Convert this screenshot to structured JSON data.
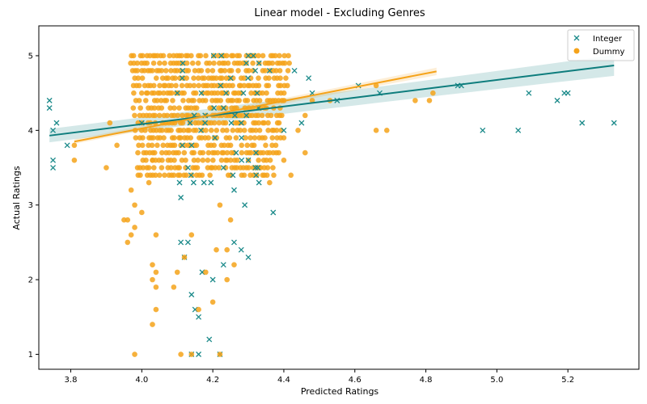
{
  "chart_data": {
    "type": "scatter",
    "title": "Linear model - Excluding Genres",
    "xlabel": "Predicted Ratings",
    "ylabel": "Actual Ratings",
    "xlim": [
      3.71,
      5.4
    ],
    "ylim": [
      0.8,
      5.4
    ],
    "xticks": [
      3.8,
      4.0,
      4.2,
      4.4,
      4.6,
      4.8,
      5.0,
      5.2
    ],
    "yticks": [
      1,
      2,
      3,
      4,
      5
    ],
    "grid": false,
    "legend_position": "top-right",
    "series": [
      {
        "name": "Integer",
        "marker": "x",
        "color": "#1b8a8a",
        "points": [
          [
            3.74,
            4.4
          ],
          [
            3.74,
            4.3
          ],
          [
            3.75,
            4.0
          ],
          [
            3.76,
            4.1
          ],
          [
            3.75,
            3.6
          ],
          [
            3.75,
            3.5
          ],
          [
            3.79,
            3.8
          ],
          [
            4.0,
            4.1
          ],
          [
            4.1,
            4.5
          ],
          [
            4.11,
            3.1
          ],
          [
            4.11,
            2.5
          ],
          [
            4.12,
            2.3
          ],
          [
            4.13,
            2.5
          ],
          [
            4.14,
            1.8
          ],
          [
            4.15,
            1.6
          ],
          [
            4.16,
            1.5
          ],
          [
            4.14,
            1.0
          ],
          [
            4.16,
            1.0
          ],
          [
            4.19,
            1.2
          ],
          [
            4.22,
            1.0
          ],
          [
            4.17,
            2.1
          ],
          [
            4.2,
            2.0
          ],
          [
            4.23,
            2.2
          ],
          [
            4.26,
            2.5
          ],
          [
            4.28,
            2.4
          ],
          [
            4.3,
            2.3
          ],
          [
            4.26,
            3.2
          ],
          [
            4.29,
            3.0
          ],
          [
            4.33,
            3.3
          ],
          [
            4.37,
            2.9
          ],
          [
            4.3,
            3.6
          ],
          [
            4.32,
            3.5
          ],
          [
            4.3,
            5.0
          ],
          [
            4.33,
            4.9
          ],
          [
            4.36,
            4.8
          ],
          [
            4.4,
            4.0
          ],
          [
            4.43,
            4.8
          ],
          [
            4.45,
            4.1
          ],
          [
            4.47,
            4.7
          ],
          [
            4.48,
            4.5
          ],
          [
            4.55,
            4.4
          ],
          [
            4.61,
            4.6
          ],
          [
            4.67,
            4.5
          ],
          [
            4.89,
            4.6
          ],
          [
            4.9,
            4.6
          ],
          [
            4.96,
            4.0
          ],
          [
            5.06,
            4.0
          ],
          [
            5.09,
            4.5
          ],
          [
            5.17,
            4.4
          ],
          [
            5.19,
            4.5
          ],
          [
            5.2,
            4.5
          ],
          [
            5.24,
            4.1
          ],
          [
            5.33,
            4.1
          ]
        ]
      },
      {
        "name": "Dummy",
        "marker": "o",
        "color": "#f5a31a",
        "points": [
          [
            3.81,
            3.6
          ],
          [
            3.81,
            3.8
          ],
          [
            3.9,
            3.5
          ],
          [
            3.91,
            4.1
          ],
          [
            3.93,
            3.8
          ],
          [
            3.95,
            2.8
          ],
          [
            3.96,
            2.8
          ],
          [
            3.96,
            2.5
          ],
          [
            3.97,
            2.6
          ],
          [
            3.98,
            2.7
          ],
          [
            3.98,
            3.0
          ],
          [
            3.97,
            3.2
          ],
          [
            4.0,
            2.9
          ],
          [
            4.02,
            3.3
          ],
          [
            4.02,
            3.5
          ],
          [
            4.03,
            3.6
          ],
          [
            4.04,
            2.6
          ],
          [
            3.98,
            1.0
          ],
          [
            4.03,
            2.2
          ],
          [
            4.04,
            2.1
          ],
          [
            4.03,
            2.0
          ],
          [
            4.04,
            1.9
          ],
          [
            4.04,
            1.6
          ],
          [
            4.03,
            1.4
          ],
          [
            4.11,
            1.0
          ],
          [
            4.14,
            1.0
          ],
          [
            4.16,
            1.6
          ],
          [
            4.2,
            1.7
          ],
          [
            4.22,
            1.0
          ],
          [
            4.09,
            1.9
          ],
          [
            4.1,
            2.1
          ],
          [
            4.12,
            2.3
          ],
          [
            4.14,
            2.6
          ],
          [
            4.18,
            2.1
          ],
          [
            4.21,
            2.4
          ],
          [
            4.24,
            2.4
          ],
          [
            4.26,
            2.2
          ],
          [
            4.24,
            2.0
          ],
          [
            4.22,
            3.0
          ],
          [
            4.25,
            2.8
          ],
          [
            4.36,
            3.3
          ],
          [
            4.4,
            3.6
          ],
          [
            4.42,
            3.4
          ],
          [
            4.46,
            3.7
          ],
          [
            4.4,
            3.9
          ],
          [
            4.44,
            4.0
          ],
          [
            4.46,
            4.2
          ],
          [
            4.48,
            4.4
          ],
          [
            4.53,
            4.4
          ],
          [
            4.66,
            4.6
          ],
          [
            4.66,
            4.0
          ],
          [
            4.69,
            4.0
          ],
          [
            4.77,
            4.4
          ],
          [
            4.81,
            4.4
          ],
          [
            4.82,
            4.5
          ]
        ]
      }
    ],
    "regression_lines": [
      {
        "name": "Integer",
        "color": "#0e7d7d",
        "x": [
          3.74,
          5.33
        ],
        "y": [
          3.93,
          4.87
        ],
        "ci_width_at_ends": [
          0.18,
          0.28
        ]
      },
      {
        "name": "Dummy",
        "color": "#f5a31a",
        "x": [
          3.81,
          4.83
        ],
        "y": [
          3.85,
          4.79
        ],
        "ci_width_at_ends": [
          0.06,
          0.1
        ]
      }
    ],
    "dense_regions": [
      {
        "series": "Dummy",
        "x_range": [
          3.97,
          4.42
        ],
        "y_range": [
          3.4,
          5.0
        ],
        "pattern_y_step": 0.1
      },
      {
        "series": "Integer",
        "x_range": [
          4.1,
          4.32
        ],
        "y_range": [
          3.3,
          5.0
        ],
        "pattern_y_step": 0.1
      }
    ]
  }
}
